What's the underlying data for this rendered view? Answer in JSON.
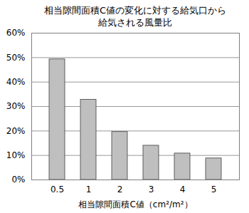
{
  "chart_data": {
    "type": "bar",
    "title": "相当隙間面積C値の変化に対する給気口から\n給気される風量比",
    "x_label": "相当隙間面積C値（cm²/m²）",
    "categories": [
      "0.5",
      "1",
      "2",
      "3",
      "4",
      "5"
    ],
    "values": [
      49.3,
      32.8,
      19.6,
      14,
      10.8,
      8.8
    ],
    "color": "#bfbfbf",
    "ylim": [
      0,
      60
    ],
    "yticks": [
      {
        "value": 0,
        "label": "0%"
      },
      {
        "value": 10,
        "label": "10%"
      },
      {
        "value": 20,
        "label": "20%"
      },
      {
        "value": 30,
        "label": "30%"
      },
      {
        "value": 40,
        "label": "40%"
      },
      {
        "value": 50,
        "label": "50%"
      },
      {
        "value": 60,
        "label": "60%"
      }
    ],
    "grid": true
  }
}
